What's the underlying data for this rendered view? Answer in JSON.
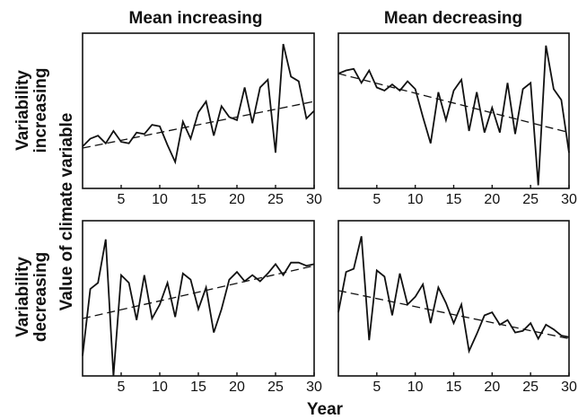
{
  "chart_data": {
    "type": "line",
    "xlabel": "Year",
    "ylabel": "Value of climate variable",
    "column_titles": [
      "Mean increasing",
      "Mean decreasing"
    ],
    "row_titles": [
      [
        "Variability",
        "increasing"
      ],
      [
        "Variability",
        "decreasing"
      ]
    ],
    "xlim": [
      0,
      30
    ],
    "ylim": [
      0,
      10
    ],
    "x_ticks": [
      5,
      10,
      15,
      20,
      25,
      30
    ],
    "panels": [
      {
        "column": "Mean increasing",
        "row": "Variability increasing",
        "x": [
          0,
          1,
          2,
          3,
          4,
          5,
          6,
          7,
          8,
          9,
          10,
          11,
          12,
          13,
          14,
          15,
          16,
          17,
          18,
          19,
          20,
          21,
          22,
          23,
          24,
          25,
          26,
          27,
          28,
          29,
          30
        ],
        "values": [
          2.7,
          3.2,
          3.4,
          2.9,
          3.7,
          3.0,
          2.9,
          3.6,
          3.5,
          4.1,
          4.0,
          2.8,
          1.7,
          4.3,
          3.2,
          4.9,
          5.6,
          3.4,
          5.3,
          4.6,
          4.4,
          6.5,
          4.2,
          6.5,
          7.0,
          2.3,
          9.3,
          7.2,
          6.9,
          4.5,
          5.0
        ],
        "trend": [
          2.6,
          5.6
        ]
      },
      {
        "column": "Mean decreasing",
        "row": "Variability increasing",
        "x": [
          0,
          1,
          2,
          3,
          4,
          5,
          6,
          7,
          8,
          9,
          10,
          11,
          12,
          13,
          14,
          15,
          16,
          17,
          18,
          19,
          20,
          21,
          22,
          23,
          24,
          25,
          26,
          27,
          28,
          29,
          30
        ],
        "values": [
          7.4,
          7.6,
          7.7,
          6.8,
          7.6,
          6.5,
          6.3,
          6.7,
          6.3,
          6.9,
          6.4,
          4.6,
          2.9,
          6.2,
          4.4,
          6.3,
          7.0,
          3.7,
          6.2,
          3.6,
          5.2,
          3.6,
          6.8,
          3.5,
          6.4,
          6.8,
          0.2,
          9.2,
          6.4,
          5.7,
          2.3
        ],
        "trend": [
          7.4,
          3.6
        ]
      },
      {
        "column": "Mean increasing",
        "row": "Variability decreasing",
        "x": [
          0,
          1,
          2,
          3,
          4,
          5,
          6,
          7,
          8,
          9,
          10,
          11,
          12,
          13,
          14,
          15,
          16,
          17,
          18,
          19,
          20,
          21,
          22,
          23,
          24,
          25,
          26,
          27,
          28,
          29,
          30
        ],
        "values": [
          1.3,
          5.6,
          6.0,
          8.8,
          0.0,
          6.5,
          6.0,
          3.6,
          6.5,
          3.7,
          4.6,
          6.0,
          3.8,
          6.6,
          6.2,
          4.3,
          5.7,
          2.8,
          4.3,
          6.2,
          6.7,
          6.1,
          6.5,
          6.1,
          6.6,
          7.2,
          6.5,
          7.3,
          7.3,
          7.1,
          7.2
        ],
        "trend": [
          3.7,
          7.1
        ]
      },
      {
        "column": "Mean decreasing",
        "row": "Variability decreasing",
        "x": [
          0,
          1,
          2,
          3,
          4,
          5,
          6,
          7,
          8,
          9,
          10,
          11,
          12,
          13,
          14,
          15,
          16,
          17,
          18,
          19,
          20,
          21,
          22,
          23,
          24,
          25,
          26,
          27,
          28,
          29,
          30
        ],
        "values": [
          4.1,
          6.7,
          6.9,
          9.0,
          2.3,
          6.8,
          6.4,
          3.9,
          6.6,
          4.6,
          5.1,
          5.9,
          3.4,
          5.7,
          4.7,
          3.4,
          4.6,
          1.6,
          2.7,
          3.9,
          4.1,
          3.3,
          3.6,
          2.8,
          2.9,
          3.4,
          2.4,
          3.3,
          3.0,
          2.6,
          2.5
        ],
        "trend": [
          5.5,
          2.4
        ]
      }
    ]
  }
}
